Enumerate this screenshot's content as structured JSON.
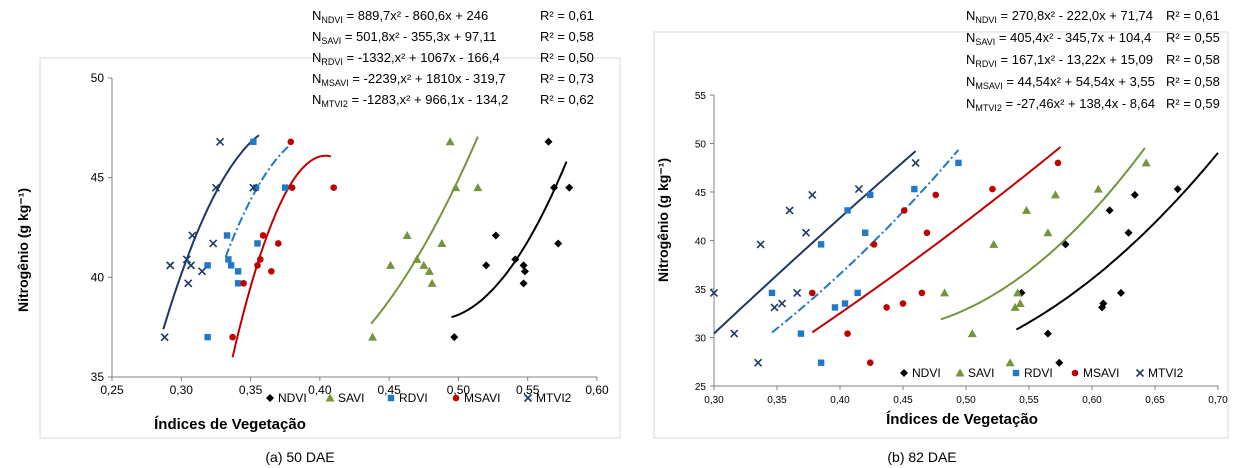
{
  "legend_items": [
    {
      "name": "NDVI",
      "color": "#000000",
      "marker": "diamond"
    },
    {
      "name": "SAVI",
      "color": "#77933c",
      "marker": "triangle"
    },
    {
      "name": "RDVI",
      "color": "#1f78c8",
      "marker": "square"
    },
    {
      "name": "MSAVI",
      "color": "#c00000",
      "marker": "circle"
    },
    {
      "name": "MTVI2",
      "color": "#1f3864",
      "marker": "x"
    }
  ],
  "chart_data": [
    {
      "type": "scatter",
      "caption": "(a) 50 DAE",
      "xlabel": "Índices de Vegetação",
      "ylabel": "Nitrogênio (g kg⁻¹)",
      "xlim": [
        0.25,
        0.6
      ],
      "ylim": [
        35,
        50
      ],
      "x_ticks": [
        "0,25",
        "0,30",
        "0,35",
        "0,40",
        "0,45",
        "0,50",
        "0,55",
        "0,60"
      ],
      "y_ticks": [
        "35",
        "40",
        "45",
        "50"
      ],
      "equations": [
        {
          "index": "NDVI",
          "text": "= 889,7x² - 860,6x + 246",
          "r2": "R² = 0,61"
        },
        {
          "index": "SAVI",
          "text": "= 501,8x² - 355,3x + 97,11",
          "r2": "R² = 0,58"
        },
        {
          "index": "RDVI",
          "text": "= -1332,x² + 1067x - 166,4",
          "r2": "R² = 0,50"
        },
        {
          "index": "MSAVI",
          "text": "= -2239,x² + 1810x - 319,7",
          "r2": "R² = 0,73"
        },
        {
          "index": "MTVI2",
          "text": "= -1283,x² + 966,1x - 134,2",
          "r2": "R² = 0,62"
        }
      ],
      "series": [
        {
          "name": "NDVI",
          "points": [
            [
              0.497,
              37.0
            ],
            [
              0.52,
              40.6
            ],
            [
              0.527,
              42.1
            ],
            [
              0.541,
              40.9
            ],
            [
              0.547,
              40.6
            ],
            [
              0.547,
              39.7
            ],
            [
              0.548,
              40.3
            ],
            [
              0.565,
              46.8
            ],
            [
              0.569,
              44.5
            ],
            [
              0.572,
              41.7
            ],
            [
              0.58,
              44.5
            ]
          ],
          "fit": [
            889.7,
            -860.6,
            246
          ],
          "fit_range": [
            0.495,
            0.578
          ]
        },
        {
          "name": "SAVI",
          "points": [
            [
              0.438,
              37.0
            ],
            [
              0.451,
              40.6
            ],
            [
              0.463,
              42.1
            ],
            [
              0.47,
              40.9
            ],
            [
              0.475,
              40.6
            ],
            [
              0.479,
              40.3
            ],
            [
              0.481,
              39.7
            ],
            [
              0.488,
              41.7
            ],
            [
              0.494,
              46.8
            ],
            [
              0.498,
              44.5
            ],
            [
              0.514,
              44.5
            ]
          ],
          "fit": [
            501.8,
            -355.3,
            97.11
          ],
          "fit_range": [
            0.437,
            0.514
          ]
        },
        {
          "name": "RDVI",
          "points": [
            [
              0.319,
              37.0
            ],
            [
              0.319,
              40.6
            ],
            [
              0.333,
              42.1
            ],
            [
              0.334,
              40.9
            ],
            [
              0.336,
              40.6
            ],
            [
              0.341,
              39.7
            ],
            [
              0.341,
              40.3
            ],
            [
              0.352,
              46.8
            ],
            [
              0.354,
              44.5
            ],
            [
              0.355,
              41.7
            ],
            [
              0.375,
              44.5
            ]
          ],
          "fit": [
            -1332,
            1067,
            -166.4
          ],
          "fit_range": [
            0.332,
            0.377
          ]
        },
        {
          "name": "MSAVI",
          "points": [
            [
              0.337,
              37.0
            ],
            [
              0.345,
              39.7
            ],
            [
              0.355,
              40.6
            ],
            [
              0.357,
              40.9
            ],
            [
              0.359,
              42.1
            ],
            [
              0.365,
              40.3
            ],
            [
              0.37,
              41.7
            ],
            [
              0.379,
              46.8
            ],
            [
              0.38,
              44.5
            ],
            [
              0.41,
              44.5
            ]
          ],
          "fit": [
            -2239,
            1810,
            -319.7
          ],
          "fit_range": [
            0.337,
            0.408
          ]
        },
        {
          "name": "MTVI2",
          "points": [
            [
              0.288,
              37.0
            ],
            [
              0.292,
              40.6
            ],
            [
              0.304,
              40.9
            ],
            [
              0.305,
              39.7
            ],
            [
              0.307,
              40.6
            ],
            [
              0.308,
              42.1
            ],
            [
              0.315,
              40.3
            ],
            [
              0.323,
              41.7
            ],
            [
              0.325,
              44.5
            ],
            [
              0.328,
              46.8
            ],
            [
              0.352,
              44.5
            ]
          ],
          "fit": [
            -1283,
            966.1,
            -134.2
          ],
          "fit_range": [
            0.287,
            0.356
          ]
        }
      ]
    },
    {
      "type": "scatter",
      "caption": "(b) 82 DAE",
      "xlabel": "Índices de Vegetação",
      "ylabel": "Nitrogênio (g kg⁻¹)",
      "xlim": [
        0.3,
        0.7
      ],
      "ylim": [
        25,
        55
      ],
      "x_ticks": [
        "0,30",
        "0,35",
        "0,40",
        "0,45",
        "0,50",
        "0,55",
        "0,60",
        "0,65",
        "0,70"
      ],
      "y_ticks": [
        "25",
        "30",
        "35",
        "40",
        "45",
        "50",
        "55"
      ],
      "equations": [
        {
          "index": "NDVI",
          "text": "= 270,8x² - 222,0x + 71,74",
          "r2": "R² = 0,61"
        },
        {
          "index": "SAVI",
          "text": "= 405,4x² - 345,7x + 104,4",
          "r2": "R² = 0,55"
        },
        {
          "index": "RDVI",
          "text": "= 167,1x² - 13,22x + 15,09",
          "r2": "R² = 0,58"
        },
        {
          "index": "MSAVI",
          "text": "= 44,54x² + 54,54x + 3,55",
          "r2": "R² = 0,58"
        },
        {
          "index": "MTVI2",
          "text": "= -27,46x² + 138,4x - 8,64",
          "r2": "R² = 0,59"
        }
      ],
      "series": [
        {
          "name": "NDVI",
          "points": [
            [
              0.544,
              34.6
            ],
            [
              0.565,
              30.4
            ],
            [
              0.574,
              27.4
            ],
            [
              0.579,
              39.6
            ],
            [
              0.608,
              33.1
            ],
            [
              0.609,
              33.5
            ],
            [
              0.614,
              43.1
            ],
            [
              0.623,
              34.6
            ],
            [
              0.629,
              40.8
            ],
            [
              0.634,
              44.7
            ],
            [
              0.668,
              45.3
            ]
          ],
          "fit": [
            270.8,
            -222.0,
            71.74
          ],
          "fit_range": [
            0.54,
            0.7
          ]
        },
        {
          "name": "SAVI",
          "points": [
            [
              0.483,
              34.6
            ],
            [
              0.505,
              30.4
            ],
            [
              0.522,
              39.6
            ],
            [
              0.535,
              27.4
            ],
            [
              0.539,
              33.1
            ],
            [
              0.541,
              34.6
            ],
            [
              0.543,
              33.5
            ],
            [
              0.548,
              43.1
            ],
            [
              0.565,
              40.8
            ],
            [
              0.571,
              44.7
            ],
            [
              0.605,
              45.3
            ],
            [
              0.643,
              48.0
            ]
          ],
          "fit": [
            405.4,
            -345.7,
            104.4
          ],
          "fit_range": [
            0.48,
            0.642
          ]
        },
        {
          "name": "RDVI",
          "points": [
            [
              0.346,
              34.6
            ],
            [
              0.369,
              30.4
            ],
            [
              0.385,
              27.4
            ],
            [
              0.385,
              39.6
            ],
            [
              0.396,
              33.1
            ],
            [
              0.404,
              33.5
            ],
            [
              0.406,
              43.1
            ],
            [
              0.414,
              34.6
            ],
            [
              0.42,
              40.8
            ],
            [
              0.424,
              44.7
            ],
            [
              0.459,
              45.3
            ],
            [
              0.494,
              48.0
            ]
          ],
          "fit": [
            167.1,
            -13.22,
            15.09
          ],
          "fit_range": [
            0.346,
            0.494
          ]
        },
        {
          "name": "MSAVI",
          "points": [
            [
              0.378,
              34.6
            ],
            [
              0.406,
              30.4
            ],
            [
              0.424,
              27.4
            ],
            [
              0.427,
              39.6
            ],
            [
              0.437,
              33.1
            ],
            [
              0.45,
              33.5
            ],
            [
              0.451,
              43.1
            ],
            [
              0.465,
              34.6
            ],
            [
              0.469,
              40.8
            ],
            [
              0.476,
              44.7
            ],
            [
              0.521,
              45.3
            ],
            [
              0.573,
              48.0
            ]
          ],
          "fit": [
            44.54,
            54.54,
            3.55
          ],
          "fit_range": [
            0.378,
            0.575
          ]
        },
        {
          "name": "MTVI2",
          "points": [
            [
              0.3,
              34.6
            ],
            [
              0.316,
              30.4
            ],
            [
              0.335,
              27.4
            ],
            [
              0.337,
              39.6
            ],
            [
              0.348,
              33.1
            ],
            [
              0.354,
              33.5
            ],
            [
              0.36,
              43.1
            ],
            [
              0.366,
              34.6
            ],
            [
              0.373,
              40.8
            ],
            [
              0.378,
              44.7
            ],
            [
              0.415,
              45.3
            ],
            [
              0.46,
              48.0
            ]
          ],
          "fit": [
            -27.46,
            138.4,
            -8.64
          ],
          "fit_range": [
            0.3,
            0.46
          ]
        }
      ]
    }
  ]
}
